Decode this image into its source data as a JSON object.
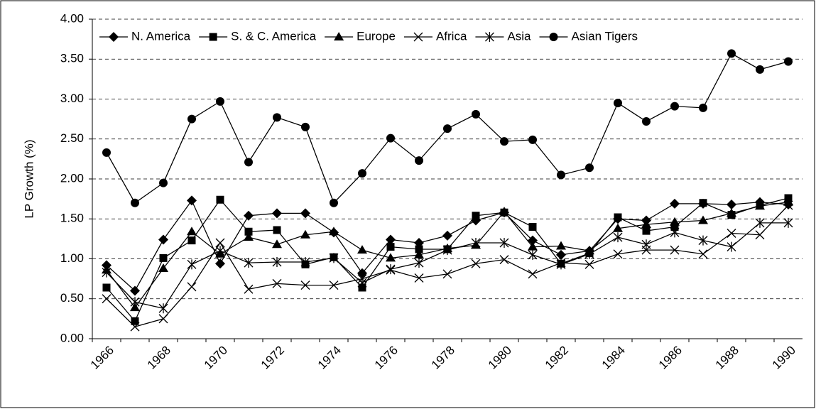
{
  "chart_data": {
    "type": "line",
    "y_label": "LP Growth (%)",
    "categories": [
      "1966",
      null,
      "1968",
      null,
      "1970",
      null,
      "1972",
      null,
      "1974",
      null,
      "1976",
      null,
      "1978",
      null,
      "1980",
      null,
      "1982",
      null,
      "1984",
      null,
      "1986",
      null,
      "1988",
      null,
      "1990"
    ],
    "ylim": [
      0,
      4
    ],
    "yticks": [
      {
        "value": 0,
        "label": "0.00"
      },
      {
        "value": 0.5,
        "label": "0.50"
      },
      {
        "value": 1,
        "label": "1.00"
      },
      {
        "value": 1.5,
        "label": "1.50"
      },
      {
        "value": 2,
        "label": "2.00"
      },
      {
        "value": 2.5,
        "label": "2.50"
      },
      {
        "value": 3,
        "label": "3.00"
      },
      {
        "value": 3.5,
        "label": "3.50"
      },
      {
        "value": 4,
        "label": "4.00"
      }
    ],
    "grid": true,
    "legend": "top",
    "series": [
      {
        "name": "N. America",
        "color": "#000000",
        "marker": "diamond",
        "values": [
          0.92,
          0.6,
          1.24,
          1.73,
          0.94,
          1.54,
          1.57,
          1.57,
          1.33,
          0.82,
          1.24,
          1.2,
          1.29,
          1.48,
          1.58,
          1.23,
          1.05,
          1.1,
          1.5,
          1.48,
          1.69,
          1.69,
          1.68,
          1.71,
          1.68
        ]
      },
      {
        "name": "S. & C. America",
        "color": "#000000",
        "marker": "square",
        "values": [
          0.64,
          0.22,
          1.01,
          1.23,
          1.74,
          1.34,
          1.36,
          0.93,
          1.02,
          0.64,
          1.15,
          1.12,
          1.12,
          1.54,
          1.58,
          1.4,
          0.94,
          1.07,
          1.52,
          1.35,
          1.4,
          1.7,
          1.55,
          1.67,
          1.76
        ]
      },
      {
        "name": "Europe",
        "color": "#000000",
        "marker": "triangle",
        "values": [
          0.86,
          0.39,
          0.88,
          1.34,
          1.06,
          1.27,
          1.18,
          1.3,
          1.34,
          1.11,
          1.01,
          1.05,
          1.13,
          1.17,
          1.59,
          1.15,
          1.16,
          1.1,
          1.38,
          1.43,
          1.46,
          1.48,
          1.57,
          1.66,
          1.71
        ]
      },
      {
        "name": "Africa",
        "color": "#000000",
        "marker": "x",
        "values": [
          0.5,
          0.15,
          0.25,
          0.65,
          1.2,
          0.62,
          0.69,
          0.67,
          0.67,
          0.75,
          0.86,
          0.76,
          0.81,
          0.94,
          0.99,
          0.81,
          0.95,
          0.93,
          1.06,
          1.11,
          1.11,
          1.06,
          1.32,
          1.3,
          1.67
        ]
      },
      {
        "name": "Asia",
        "color": "#000000",
        "marker": "asterisk",
        "values": [
          0.83,
          0.46,
          0.38,
          0.93,
          1.1,
          0.95,
          0.96,
          0.96,
          1.01,
          0.7,
          0.87,
          0.95,
          1.11,
          1.2,
          1.2,
          1.05,
          0.93,
          1.06,
          1.27,
          1.18,
          1.33,
          1.23,
          1.15,
          1.45,
          1.45
        ]
      },
      {
        "name": "Asian Tigers",
        "color": "#000000",
        "marker": "circle",
        "values": [
          2.33,
          1.7,
          1.95,
          2.75,
          2.97,
          2.21,
          2.77,
          2.65,
          1.7,
          2.07,
          2.51,
          2.23,
          2.63,
          2.81,
          2.47,
          2.49,
          2.05,
          2.14,
          2.95,
          2.72,
          2.91,
          2.89,
          3.57,
          3.37,
          3.47
        ]
      }
    ]
  }
}
